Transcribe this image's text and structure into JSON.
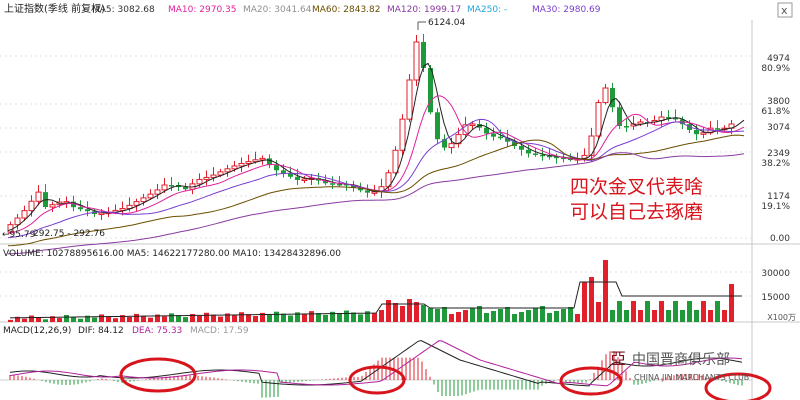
{
  "header": {
    "title": "上证指数(季线 前复权)",
    "ma": [
      {
        "label": "MA5: 3082.68",
        "color": "#333333"
      },
      {
        "label": "MA10: 2970.35",
        "color": "#e0209a"
      },
      {
        "label": "MA20: 3041.64",
        "color": "#909090"
      },
      {
        "label": "MA60: 2843.82",
        "color": "#6a4f00"
      },
      {
        "label": "MA120: 1999.17",
        "color": "#8a3aa0"
      },
      {
        "label": "MA250: -",
        "color": "#22a6d8"
      },
      {
        "label": "MA30: 2980.69",
        "color": "#7a3fd0"
      }
    ]
  },
  "window_controls": {
    "close": "x"
  },
  "price_panel": {
    "axis_labels": [
      "4974",
      "80.9%",
      "3800",
      "61.8%",
      "3074",
      "2349",
      "38.2%",
      "1174",
      "19.1%",
      "0.00"
    ],
    "high_annotation": "6124.04",
    "low_annotation": "←95.79",
    "low_annotation_2": "292.75 - 292.76",
    "overlay_text_line1": "四次金叉代表啥",
    "overlay_text_line2": "可以自己去琢磨",
    "overlay_color": "#d8141c"
  },
  "volume_panel": {
    "header": "VOLUME: 10278895616.00  MA5: 14622177280.00  MA10: 13428432896.00",
    "axis_labels": [
      "30000",
      "15000"
    ],
    "unit": "X100万"
  },
  "macd_panel": {
    "header_parts": [
      "MACD(12,26,9)",
      "DIF: 84.12",
      "DEA: 75.33",
      "MACD: 17.59"
    ]
  },
  "watermark": {
    "cn": "中国晋商俱乐部",
    "en": "CHINA JIN MARCHANTS CLUB"
  },
  "colors": {
    "up": "#e2202c",
    "down": "#1f9a3a",
    "circle": "#d8141c"
  }
}
